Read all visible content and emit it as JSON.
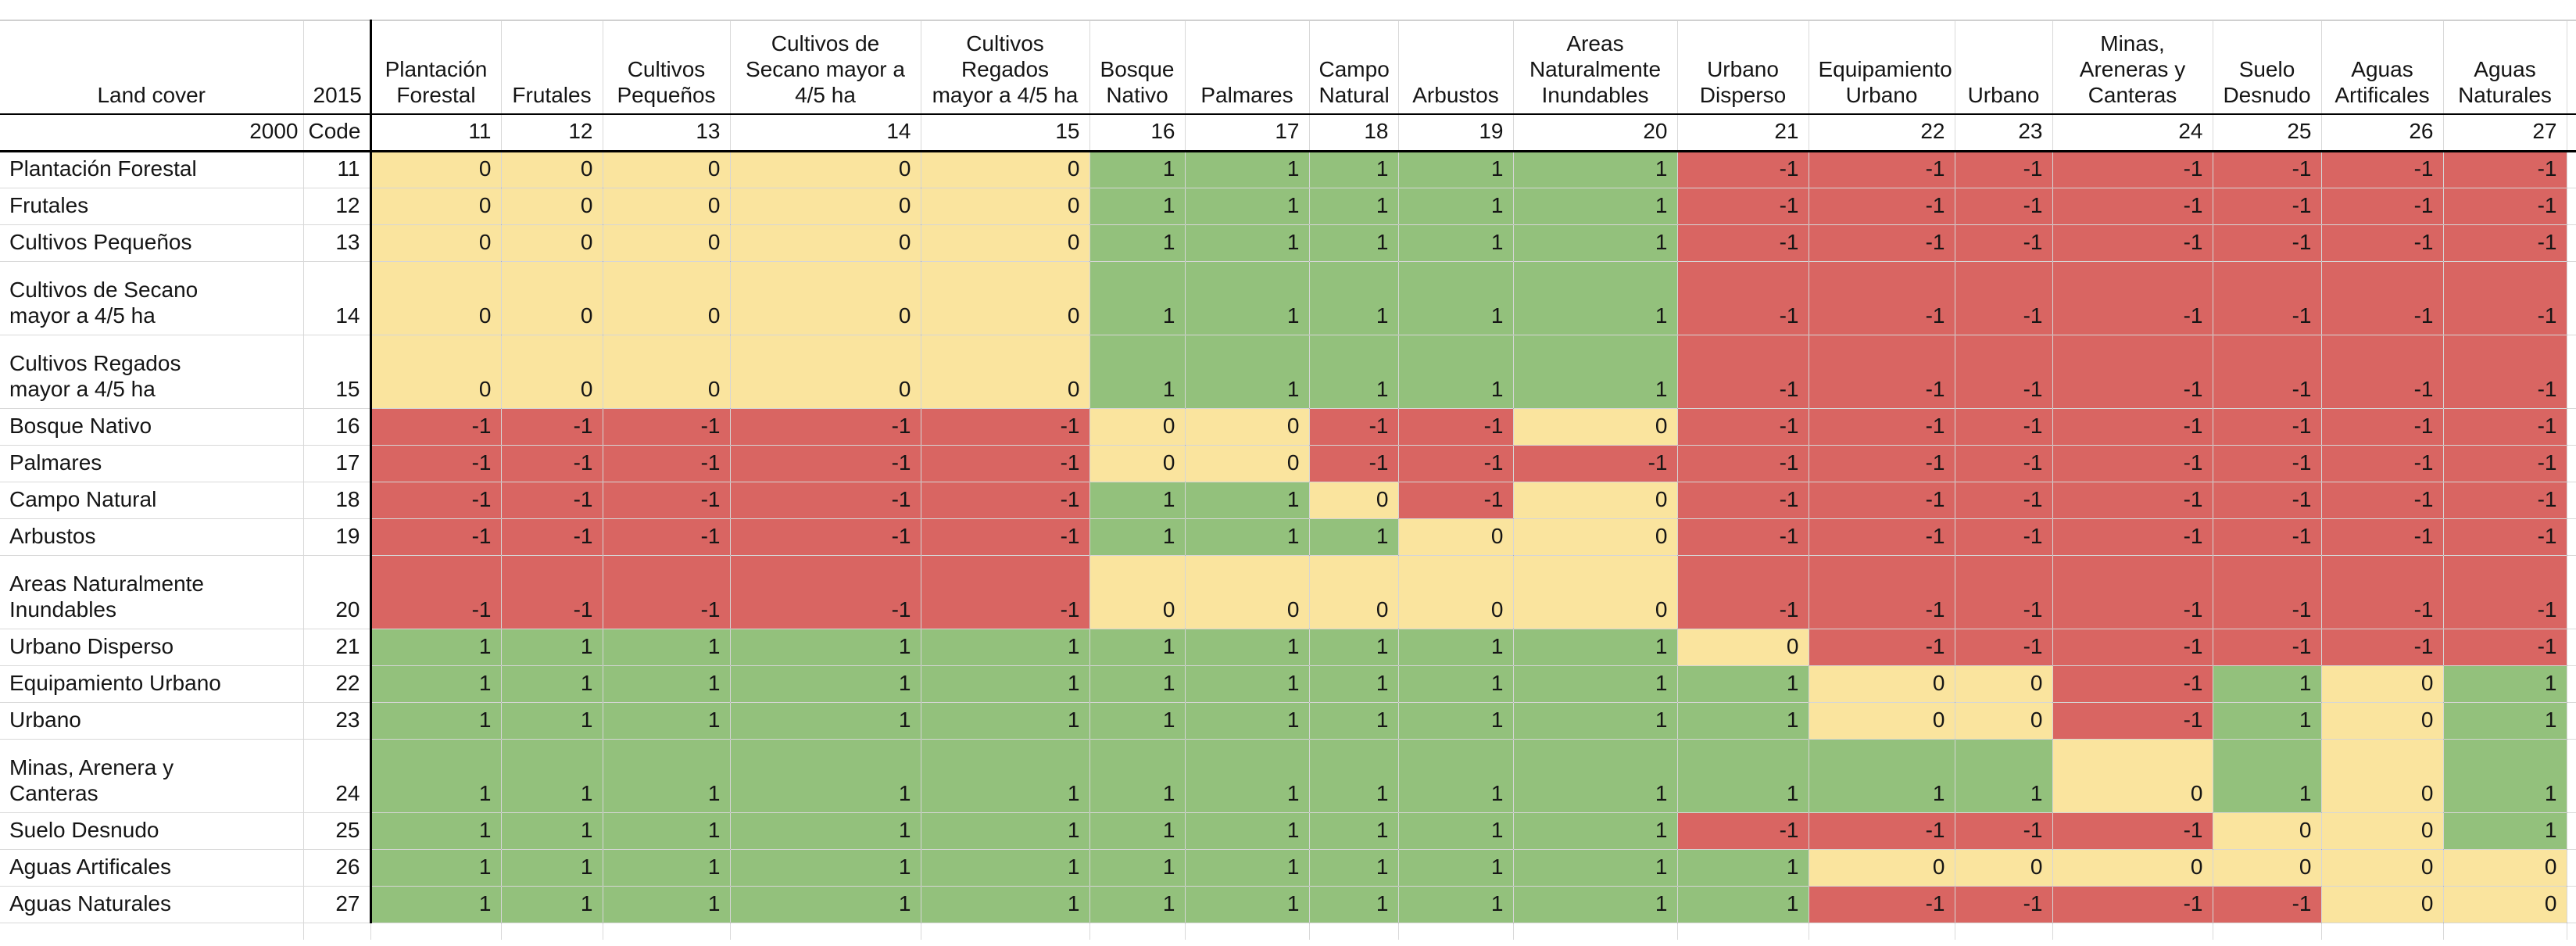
{
  "corner": {
    "top_left": "Land cover",
    "top_right": "2015",
    "bottom_left": "2000",
    "bottom_right": "Code"
  },
  "colors": {
    "positive": "#93c17c",
    "zero": "#fae49e",
    "negative": "#d96562"
  },
  "columns": [
    {
      "code": "11",
      "label": "Plantación\nForestal"
    },
    {
      "code": "12",
      "label": "Frutales"
    },
    {
      "code": "13",
      "label": "Cultivos\nPequeños"
    },
    {
      "code": "14",
      "label": "Cultivos de\nSecano mayor a\n4/5 ha"
    },
    {
      "code": "15",
      "label": "Cultivos\nRegados\nmayor a 4/5 ha"
    },
    {
      "code": "16",
      "label": "Bosque\nNativo"
    },
    {
      "code": "17",
      "label": "Palmares"
    },
    {
      "code": "18",
      "label": "Campo\nNatural"
    },
    {
      "code": "19",
      "label": "Arbustos"
    },
    {
      "code": "20",
      "label": "Areas\nNaturalmente\nInundables"
    },
    {
      "code": "21",
      "label": "Urbano\nDisperso"
    },
    {
      "code": "22",
      "label": "Equipamiento\nUrbano"
    },
    {
      "code": "23",
      "label": "Urbano"
    },
    {
      "code": "24",
      "label": "Minas,\nAreneras y\nCanteras"
    },
    {
      "code": "25",
      "label": "Suelo\nDesnudo"
    },
    {
      "code": "26",
      "label": "Aguas\nArtificales"
    },
    {
      "code": "27",
      "label": "Aguas\nNaturales"
    }
  ],
  "rows": [
    {
      "code": "11",
      "label": "Plantación Forestal",
      "values": [
        0,
        0,
        0,
        0,
        0,
        1,
        1,
        1,
        1,
        1,
        -1,
        -1,
        -1,
        -1,
        -1,
        -1,
        -1
      ]
    },
    {
      "code": "12",
      "label": "Frutales",
      "values": [
        0,
        0,
        0,
        0,
        0,
        1,
        1,
        1,
        1,
        1,
        -1,
        -1,
        -1,
        -1,
        -1,
        -1,
        -1
      ]
    },
    {
      "code": "13",
      "label": "Cultivos Pequeños",
      "values": [
        0,
        0,
        0,
        0,
        0,
        1,
        1,
        1,
        1,
        1,
        -1,
        -1,
        -1,
        -1,
        -1,
        -1,
        -1
      ]
    },
    {
      "code": "14",
      "label": "Cultivos de Secano\nmayor a 4/5 ha",
      "values": [
        0,
        0,
        0,
        0,
        0,
        1,
        1,
        1,
        1,
        1,
        -1,
        -1,
        -1,
        -1,
        -1,
        -1,
        -1
      ]
    },
    {
      "code": "15",
      "label": "Cultivos Regados\nmayor a 4/5 ha",
      "values": [
        0,
        0,
        0,
        0,
        0,
        1,
        1,
        1,
        1,
        1,
        -1,
        -1,
        -1,
        -1,
        -1,
        -1,
        -1
      ]
    },
    {
      "code": "16",
      "label": "Bosque Nativo",
      "values": [
        -1,
        -1,
        -1,
        -1,
        -1,
        0,
        0,
        -1,
        -1,
        0,
        -1,
        -1,
        -1,
        -1,
        -1,
        -1,
        -1
      ]
    },
    {
      "code": "17",
      "label": "Palmares",
      "values": [
        -1,
        -1,
        -1,
        -1,
        -1,
        0,
        0,
        -1,
        -1,
        -1,
        -1,
        -1,
        -1,
        -1,
        -1,
        -1,
        -1
      ]
    },
    {
      "code": "18",
      "label": "Campo Natural",
      "values": [
        -1,
        -1,
        -1,
        -1,
        -1,
        1,
        1,
        0,
        -1,
        0,
        -1,
        -1,
        -1,
        -1,
        -1,
        -1,
        -1
      ]
    },
    {
      "code": "19",
      "label": "Arbustos",
      "values": [
        -1,
        -1,
        -1,
        -1,
        -1,
        1,
        1,
        1,
        0,
        0,
        -1,
        -1,
        -1,
        -1,
        -1,
        -1,
        -1
      ]
    },
    {
      "code": "20",
      "label": "Areas Naturalmente\nInundables",
      "values": [
        -1,
        -1,
        -1,
        -1,
        -1,
        0,
        0,
        0,
        0,
        0,
        -1,
        -1,
        -1,
        -1,
        -1,
        -1,
        -1
      ]
    },
    {
      "code": "21",
      "label": "Urbano Disperso",
      "values": [
        1,
        1,
        1,
        1,
        1,
        1,
        1,
        1,
        1,
        1,
        0,
        -1,
        -1,
        -1,
        -1,
        -1,
        -1
      ]
    },
    {
      "code": "22",
      "label": "Equipamiento Urbano",
      "values": [
        1,
        1,
        1,
        1,
        1,
        1,
        1,
        1,
        1,
        1,
        1,
        0,
        0,
        -1,
        1,
        0,
        1
      ]
    },
    {
      "code": "23",
      "label": "Urbano",
      "values": [
        1,
        1,
        1,
        1,
        1,
        1,
        1,
        1,
        1,
        1,
        1,
        0,
        0,
        -1,
        1,
        0,
        1
      ]
    },
    {
      "code": "24",
      "label": "Minas, Arenera y\nCanteras",
      "values": [
        1,
        1,
        1,
        1,
        1,
        1,
        1,
        1,
        1,
        1,
        1,
        1,
        1,
        0,
        1,
        0,
        1
      ]
    },
    {
      "code": "25",
      "label": "Suelo Desnudo",
      "values": [
        1,
        1,
        1,
        1,
        1,
        1,
        1,
        1,
        1,
        1,
        -1,
        -1,
        -1,
        -1,
        0,
        0,
        1
      ]
    },
    {
      "code": "26",
      "label": "Aguas Artificales",
      "values": [
        1,
        1,
        1,
        1,
        1,
        1,
        1,
        1,
        1,
        1,
        1,
        0,
        0,
        0,
        0,
        0,
        0
      ]
    },
    {
      "code": "27",
      "label": "Aguas Naturales",
      "values": [
        1,
        1,
        1,
        1,
        1,
        1,
        1,
        1,
        1,
        1,
        1,
        -1,
        -1,
        -1,
        -1,
        0,
        0
      ]
    }
  ]
}
